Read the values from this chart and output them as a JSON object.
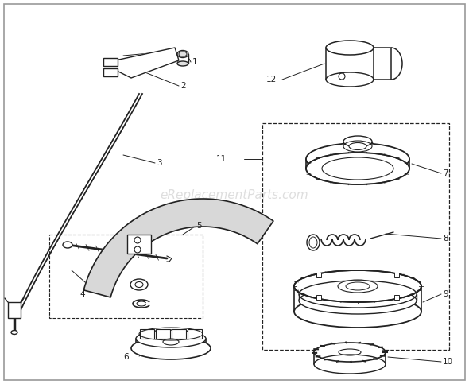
{
  "bg_color": "#ffffff",
  "watermark": "eReplacementParts.com",
  "watermark_color": "#c8c8c8",
  "line_color": "#222222",
  "label_fontsize": 7.5,
  "border_color": "#999999"
}
